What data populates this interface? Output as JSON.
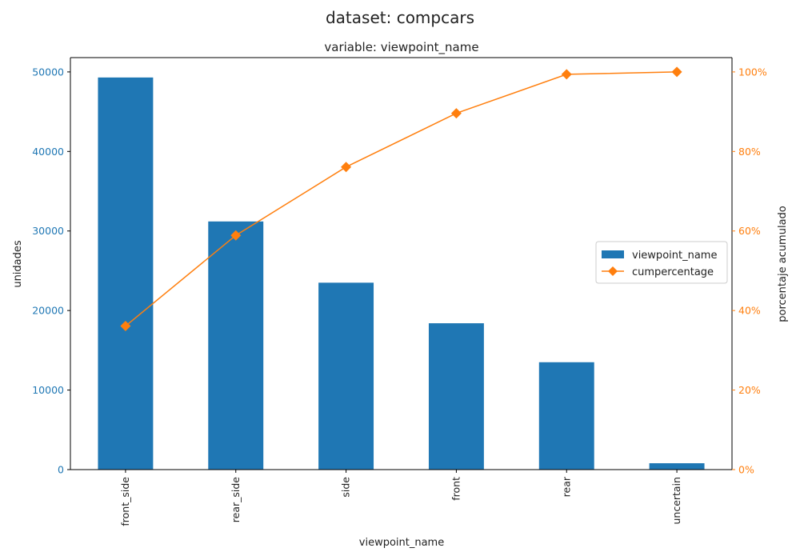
{
  "suptitle": "dataset: compcars",
  "chart_data": {
    "type": "bar",
    "title": "variable: viewpoint_name",
    "xlabel": "viewpoint_name",
    "ylabel_left": "unidades",
    "ylabel_right": "porcentaje acumulado",
    "categories": [
      "front_side",
      "rear_side",
      "side",
      "front",
      "rear",
      "uncertain"
    ],
    "series": [
      {
        "name": "viewpoint_name",
        "type": "bar",
        "axis": "left",
        "color": "#1f77b4",
        "values": [
          49300,
          31200,
          23500,
          18400,
          13500,
          800
        ]
      },
      {
        "name": "cumpercentage",
        "type": "line",
        "axis": "right",
        "color": "#ff7f0e",
        "marker": "diamond",
        "values": [
          36.1,
          58.9,
          76.1,
          89.6,
          99.4,
          100.0
        ]
      }
    ],
    "ylim_left": [
      0,
      51800
    ],
    "yticks_left": [
      0,
      10000,
      20000,
      30000,
      40000,
      50000
    ],
    "ylim_right": [
      0,
      103.6
    ],
    "yticks_right": [
      0,
      20,
      40,
      60,
      80,
      100
    ],
    "ytick_suffix_right": "%",
    "legend_position": "center-right",
    "grid": false
  }
}
